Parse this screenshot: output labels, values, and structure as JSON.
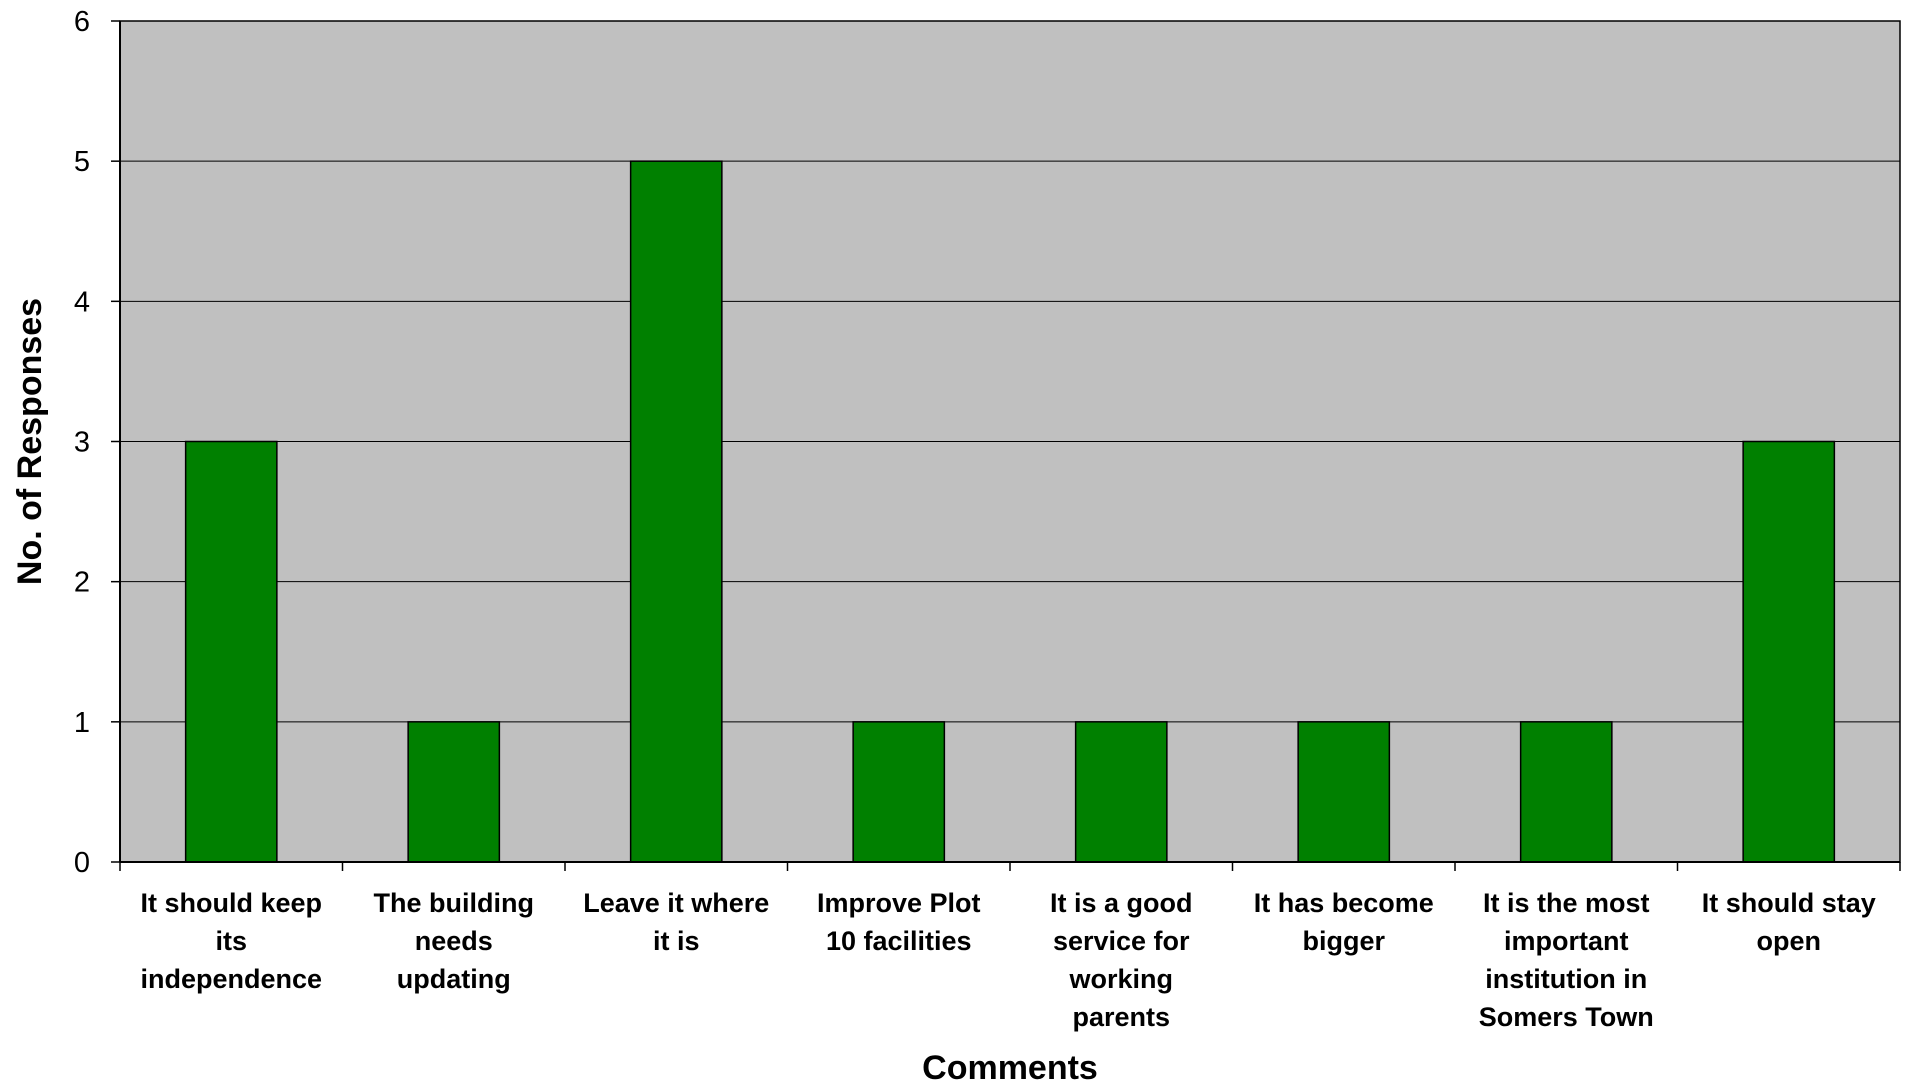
{
  "chart_data": {
    "type": "bar",
    "title": "",
    "xlabel": "Comments",
    "ylabel": "No. of Responses",
    "ylim": [
      0,
      6
    ],
    "yticks": [
      0,
      1,
      2,
      3,
      4,
      5,
      6
    ],
    "grid": true,
    "legend": "none",
    "categories": [
      [
        "It should keep",
        "its",
        "independence"
      ],
      [
        "The building",
        "needs",
        "updating"
      ],
      [
        "Leave it where",
        "it is"
      ],
      [
        "Improve Plot",
        "10 facilities"
      ],
      [
        "It is a good",
        "service for",
        "working",
        "parents"
      ],
      [
        "It has become",
        "bigger"
      ],
      [
        "It is the most",
        "important",
        "institution in",
        "Somers Town"
      ],
      [
        "It should stay",
        "open"
      ]
    ],
    "values": [
      3,
      1,
      5,
      1,
      1,
      1,
      1,
      3
    ],
    "colors": {
      "bar": "#008000",
      "bar_stroke": "#000000",
      "plot_bg": "#c0c0c0",
      "grid": "#000000",
      "axis": "#000000"
    }
  }
}
